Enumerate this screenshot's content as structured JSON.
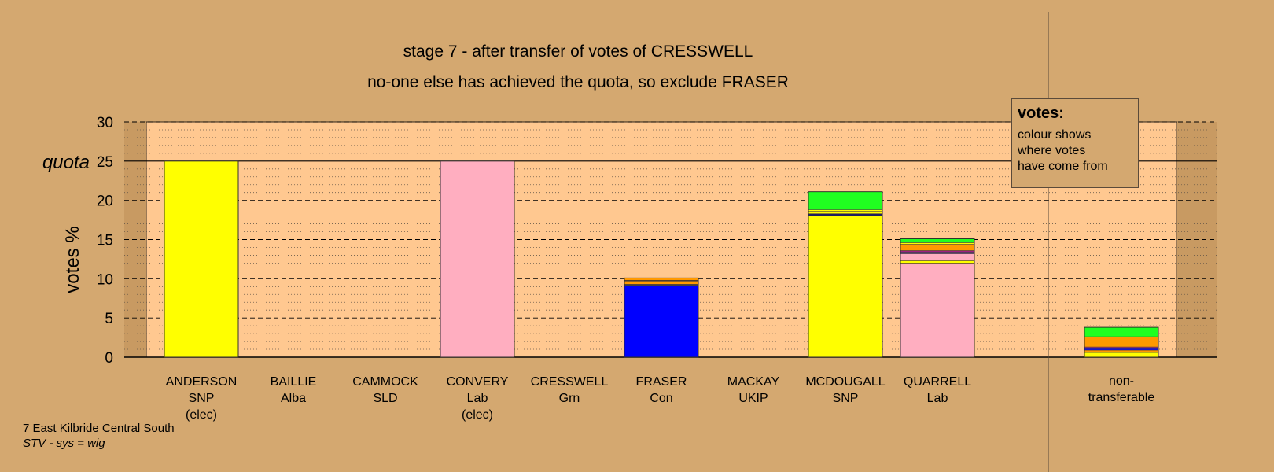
{
  "chart_data": {
    "type": "bar",
    "title": "stage 7 - after transfer of votes of CRESSWELL",
    "subtitle": "no-one else has achieved the quota, so exclude FRASER",
    "ylabel": "votes %",
    "ylim": [
      0,
      30
    ],
    "yticks": [
      0,
      5,
      10,
      15,
      20,
      25,
      30
    ],
    "quota": 25,
    "quota_label": "quota",
    "grid": true,
    "categories": [
      {
        "name": "ANDERSON",
        "party": "SNP",
        "note": "(elec)"
      },
      {
        "name": "BAILLIE",
        "party": "Alba",
        "note": ""
      },
      {
        "name": "CAMMOCK",
        "party": "SLD",
        "note": ""
      },
      {
        "name": "CONVERY",
        "party": "Lab",
        "note": "(elec)"
      },
      {
        "name": "CRESSWELL",
        "party": "Grn",
        "note": ""
      },
      {
        "name": "FRASER",
        "party": "Con",
        "note": ""
      },
      {
        "name": "MACKAY",
        "party": "UKIP",
        "note": ""
      },
      {
        "name": "MCDOUGALL",
        "party": "SNP",
        "note": ""
      },
      {
        "name": "QUARRELL",
        "party": "Lab",
        "note": ""
      }
    ],
    "nontransferable_label": [
      "non-",
      "transferable"
    ],
    "stacks": [
      [
        {
          "color": "#ffff00",
          "value": 25.0
        }
      ],
      [],
      [],
      [
        {
          "color": "#ffaec0",
          "value": 25.0
        }
      ],
      [],
      [
        {
          "color": "#0000ff",
          "value": 9.1
        },
        {
          "color": "#404040",
          "value": 0.2
        },
        {
          "color": "#ff9900",
          "value": 0.4
        },
        {
          "color": "#202020",
          "value": 0.1
        },
        {
          "color": "#ff9900",
          "value": 0.3
        }
      ],
      [],
      [
        {
          "color": "#ffff00",
          "value": 13.8
        },
        {
          "color": "#ffff00",
          "value": 4.2
        },
        {
          "color": "#202060",
          "value": 0.3
        },
        {
          "color": "#ffff00",
          "value": 0.2
        },
        {
          "color": "#cc8820",
          "value": 0.1
        },
        {
          "color": "#ffff00",
          "value": 0.2
        },
        {
          "color": "#20ff20",
          "value": 2.3
        }
      ],
      [
        {
          "color": "#ffaec0",
          "value": 11.9
        },
        {
          "color": "#cc8820",
          "value": 0.1
        },
        {
          "color": "#ffff00",
          "value": 0.3
        },
        {
          "color": "#ffaec0",
          "value": 0.9
        },
        {
          "color": "#0000ff",
          "value": 0.2
        },
        {
          "color": "#a02080",
          "value": 0.2
        },
        {
          "color": "#ff9900",
          "value": 0.8
        },
        {
          "color": "#ffff00",
          "value": 0.2
        },
        {
          "color": "#20ff20",
          "value": 0.5
        }
      ]
    ],
    "nontransferable": [
      {
        "color": "#ffff00",
        "value": 0.6
      },
      {
        "color": "#ff9900",
        "value": 0.3
      },
      {
        "color": "#0000ff",
        "value": 0.2
      },
      {
        "color": "#a02080",
        "value": 0.2
      },
      {
        "color": "#ff9900",
        "value": 1.3
      },
      {
        "color": "#20ff20",
        "value": 1.2
      }
    ],
    "legend": {
      "title": "votes:",
      "lines": [
        "colour shows",
        "where votes",
        "have come from"
      ]
    }
  },
  "footer": {
    "line1": "7 East Kilbride Central South",
    "line2": "STV - sys = wig"
  },
  "colors": {
    "background": "#d4a870",
    "plot_area": "#ffc890"
  }
}
